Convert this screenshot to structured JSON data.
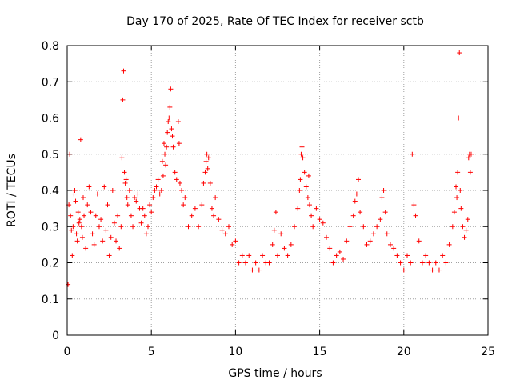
{
  "chart_data": {
    "type": "scatter",
    "title": "Day 170 of 2025, Rate Of TEC Index for receiver sctb",
    "xlabel": "GPS time / hours",
    "ylabel": "ROTI / TECUs",
    "xlim": [
      0,
      25
    ],
    "ylim": [
      0,
      0.8
    ],
    "xticks": [
      0,
      5,
      10,
      15,
      20,
      25
    ],
    "xtick_labels": [
      "0",
      "5",
      "10",
      "15",
      "20",
      "25"
    ],
    "yticks": [
      0,
      0.1,
      0.2,
      0.3,
      0.4,
      0.5,
      0.6,
      0.7,
      0.8
    ],
    "ytick_labels": [
      "0",
      "0.1",
      "0.2",
      "0.3",
      "0.4",
      "0.5",
      "0.6",
      "0.7",
      "0.8"
    ],
    "grid": true,
    "marker": "+",
    "series_color": "#ff0000",
    "series": [
      {
        "name": "ROTI",
        "points": [
          [
            0.05,
            0.14
          ],
          [
            0.1,
            0.36
          ],
          [
            0.15,
            0.5
          ],
          [
            0.2,
            0.33
          ],
          [
            0.25,
            0.29
          ],
          [
            0.3,
            0.22
          ],
          [
            0.35,
            0.3
          ],
          [
            0.4,
            0.39
          ],
          [
            0.45,
            0.4
          ],
          [
            0.5,
            0.37
          ],
          [
            0.55,
            0.28
          ],
          [
            0.6,
            0.26
          ],
          [
            0.65,
            0.34
          ],
          [
            0.7,
            0.31
          ],
          [
            0.75,
            0.32
          ],
          [
            0.8,
            0.54
          ],
          [
            0.85,
            0.3
          ],
          [
            0.9,
            0.27
          ],
          [
            0.95,
            0.38
          ],
          [
            1.0,
            0.33
          ],
          [
            1.1,
            0.24
          ],
          [
            1.2,
            0.36
          ],
          [
            1.3,
            0.41
          ],
          [
            1.4,
            0.34
          ],
          [
            1.5,
            0.28
          ],
          [
            1.6,
            0.25
          ],
          [
            1.7,
            0.33
          ],
          [
            1.8,
            0.39
          ],
          [
            1.9,
            0.3
          ],
          [
            2.0,
            0.32
          ],
          [
            2.1,
            0.26
          ],
          [
            2.2,
            0.41
          ],
          [
            2.3,
            0.29
          ],
          [
            2.4,
            0.36
          ],
          [
            2.5,
            0.22
          ],
          [
            2.6,
            0.27
          ],
          [
            2.7,
            0.4
          ],
          [
            2.8,
            0.31
          ],
          [
            2.9,
            0.26
          ],
          [
            3.0,
            0.33
          ],
          [
            3.1,
            0.24
          ],
          [
            3.2,
            0.3
          ],
          [
            3.25,
            0.49
          ],
          [
            3.3,
            0.65
          ],
          [
            3.35,
            0.73
          ],
          [
            3.4,
            0.45
          ],
          [
            3.45,
            0.42
          ],
          [
            3.5,
            0.43
          ],
          [
            3.55,
            0.38
          ],
          [
            3.6,
            0.36
          ],
          [
            3.7,
            0.4
          ],
          [
            3.8,
            0.33
          ],
          [
            3.9,
            0.3
          ],
          [
            4.0,
            0.38
          ],
          [
            4.1,
            0.37
          ],
          [
            4.2,
            0.39
          ],
          [
            4.3,
            0.35
          ],
          [
            4.4,
            0.31
          ],
          [
            4.5,
            0.35
          ],
          [
            4.6,
            0.33
          ],
          [
            4.7,
            0.28
          ],
          [
            4.8,
            0.3
          ],
          [
            4.9,
            0.36
          ],
          [
            5.0,
            0.34
          ],
          [
            5.1,
            0.38
          ],
          [
            5.2,
            0.4
          ],
          [
            5.3,
            0.41
          ],
          [
            5.4,
            0.43
          ],
          [
            5.5,
            0.39
          ],
          [
            5.6,
            0.4
          ],
          [
            5.65,
            0.48
          ],
          [
            5.7,
            0.44
          ],
          [
            5.75,
            0.53
          ],
          [
            5.8,
            0.5
          ],
          [
            5.85,
            0.47
          ],
          [
            5.9,
            0.52
          ],
          [
            5.95,
            0.56
          ],
          [
            6.0,
            0.59
          ],
          [
            6.05,
            0.6
          ],
          [
            6.1,
            0.63
          ],
          [
            6.15,
            0.68
          ],
          [
            6.2,
            0.57
          ],
          [
            6.25,
            0.55
          ],
          [
            6.3,
            0.52
          ],
          [
            6.4,
            0.45
          ],
          [
            6.5,
            0.43
          ],
          [
            6.6,
            0.59
          ],
          [
            6.65,
            0.53
          ],
          [
            6.7,
            0.42
          ],
          [
            6.8,
            0.4
          ],
          [
            6.9,
            0.36
          ],
          [
            7.0,
            0.38
          ],
          [
            7.2,
            0.3
          ],
          [
            7.4,
            0.33
          ],
          [
            7.6,
            0.35
          ],
          [
            7.8,
            0.3
          ],
          [
            8.0,
            0.36
          ],
          [
            8.1,
            0.42
          ],
          [
            8.2,
            0.45
          ],
          [
            8.25,
            0.48
          ],
          [
            8.3,
            0.5
          ],
          [
            8.35,
            0.46
          ],
          [
            8.4,
            0.49
          ],
          [
            8.5,
            0.42
          ],
          [
            8.6,
            0.35
          ],
          [
            8.7,
            0.33
          ],
          [
            8.8,
            0.38
          ],
          [
            9.0,
            0.32
          ],
          [
            9.2,
            0.29
          ],
          [
            9.4,
            0.28
          ],
          [
            9.6,
            0.3
          ],
          [
            9.8,
            0.25
          ],
          [
            10.0,
            0.26
          ],
          [
            10.2,
            0.2
          ],
          [
            10.4,
            0.22
          ],
          [
            10.6,
            0.2
          ],
          [
            10.8,
            0.22
          ],
          [
            11.0,
            0.18
          ],
          [
            11.2,
            0.2
          ],
          [
            11.4,
            0.18
          ],
          [
            11.6,
            0.22
          ],
          [
            11.8,
            0.2
          ],
          [
            12.0,
            0.2
          ],
          [
            12.2,
            0.25
          ],
          [
            12.3,
            0.29
          ],
          [
            12.4,
            0.34
          ],
          [
            12.5,
            0.22
          ],
          [
            12.7,
            0.28
          ],
          [
            12.9,
            0.24
          ],
          [
            13.1,
            0.22
          ],
          [
            13.3,
            0.25
          ],
          [
            13.5,
            0.3
          ],
          [
            13.7,
            0.35
          ],
          [
            13.8,
            0.4
          ],
          [
            13.85,
            0.43
          ],
          [
            13.9,
            0.5
          ],
          [
            13.95,
            0.52
          ],
          [
            14.0,
            0.49
          ],
          [
            14.1,
            0.45
          ],
          [
            14.2,
            0.41
          ],
          [
            14.3,
            0.38
          ],
          [
            14.35,
            0.44
          ],
          [
            14.4,
            0.36
          ],
          [
            14.5,
            0.33
          ],
          [
            14.6,
            0.3
          ],
          [
            14.8,
            0.35
          ],
          [
            15.0,
            0.32
          ],
          [
            15.2,
            0.31
          ],
          [
            15.4,
            0.27
          ],
          [
            15.6,
            0.24
          ],
          [
            15.8,
            0.2
          ],
          [
            16.0,
            0.22
          ],
          [
            16.2,
            0.23
          ],
          [
            16.4,
            0.21
          ],
          [
            16.6,
            0.26
          ],
          [
            16.8,
            0.3
          ],
          [
            17.0,
            0.33
          ],
          [
            17.1,
            0.37
          ],
          [
            17.2,
            0.39
          ],
          [
            17.3,
            0.43
          ],
          [
            17.4,
            0.34
          ],
          [
            17.6,
            0.3
          ],
          [
            17.8,
            0.25
          ],
          [
            18.0,
            0.26
          ],
          [
            18.2,
            0.28
          ],
          [
            18.4,
            0.3
          ],
          [
            18.6,
            0.32
          ],
          [
            18.7,
            0.38
          ],
          [
            18.8,
            0.4
          ],
          [
            18.9,
            0.34
          ],
          [
            19.0,
            0.28
          ],
          [
            19.2,
            0.25
          ],
          [
            19.4,
            0.24
          ],
          [
            19.6,
            0.22
          ],
          [
            19.8,
            0.2
          ],
          [
            20.0,
            0.18
          ],
          [
            20.2,
            0.22
          ],
          [
            20.4,
            0.2
          ],
          [
            20.5,
            0.5
          ],
          [
            20.6,
            0.36
          ],
          [
            20.7,
            0.33
          ],
          [
            20.9,
            0.26
          ],
          [
            21.1,
            0.2
          ],
          [
            21.3,
            0.22
          ],
          [
            21.5,
            0.2
          ],
          [
            21.7,
            0.18
          ],
          [
            21.9,
            0.2
          ],
          [
            22.1,
            0.18
          ],
          [
            22.3,
            0.22
          ],
          [
            22.5,
            0.2
          ],
          [
            22.7,
            0.25
          ],
          [
            22.9,
            0.3
          ],
          [
            23.0,
            0.34
          ],
          [
            23.1,
            0.41
          ],
          [
            23.15,
            0.38
          ],
          [
            23.2,
            0.45
          ],
          [
            23.25,
            0.6
          ],
          [
            23.3,
            0.78
          ],
          [
            23.35,
            0.4
          ],
          [
            23.4,
            0.35
          ],
          [
            23.5,
            0.3
          ],
          [
            23.6,
            0.27
          ],
          [
            23.7,
            0.29
          ],
          [
            23.8,
            0.32
          ],
          [
            23.85,
            0.49
          ],
          [
            23.9,
            0.5
          ],
          [
            23.95,
            0.45
          ],
          [
            24.0,
            0.5
          ]
        ]
      }
    ]
  }
}
